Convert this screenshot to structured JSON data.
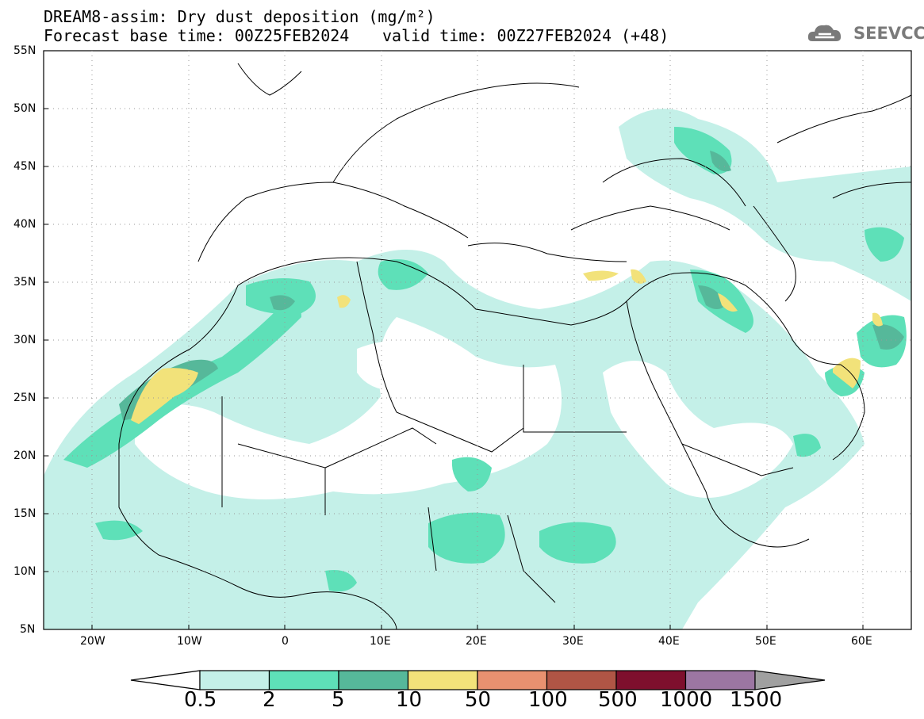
{
  "title": {
    "line1": "DREAM8-assim: Dry dust deposition (mg/m²)",
    "line2": "Forecast base time: 00Z25FEB2024",
    "valid": "valid time: 00Z27FEB2024 (+48)"
  },
  "logo": {
    "text": "SEEVCCC",
    "icon": "cloud-icon"
  },
  "map": {
    "lat_labels": [
      "55N",
      "50N",
      "45N",
      "40N",
      "35N",
      "30N",
      "25N",
      "20N",
      "15N",
      "10N",
      "5N"
    ],
    "lon_labels": [
      "20W",
      "10W",
      "0",
      "10E",
      "20E",
      "30E",
      "40E",
      "50E",
      "60E"
    ]
  },
  "colorbar": {
    "labels": [
      "0.5",
      "2",
      "5",
      "10",
      "50",
      "100",
      "500",
      "1000",
      "1500"
    ],
    "colors": [
      "#c4f0e8",
      "#5ee0b8",
      "#56b89a",
      "#f2e27a",
      "#e89170",
      "#b05545",
      "#7e0f2d",
      "#9c76a2"
    ],
    "over_color": "#a0a0a0",
    "under_color": "#ffffff"
  }
}
